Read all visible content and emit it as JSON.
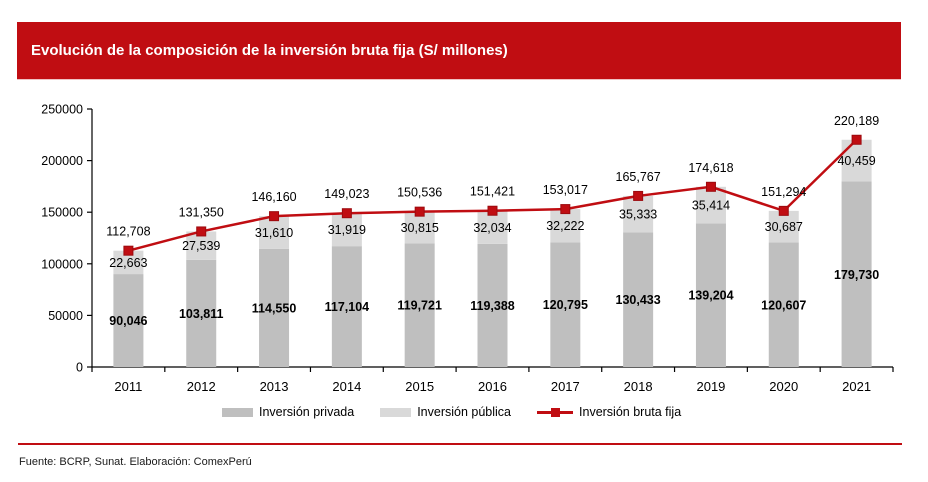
{
  "header": {
    "title": "Evolución de la composición de la inversión bruta fija (S/ millones)"
  },
  "colors": {
    "brand_red": "#C00D12",
    "marker_border_red": "#9C0A0E",
    "bar_private_gray": "#BFBFBF",
    "bar_public_gray": "#D9D9D9",
    "axis_black": "#000000"
  },
  "chart_data": {
    "type": "bar",
    "subtype": "stacked-bar-with-line",
    "categories": [
      "2011",
      "2012",
      "2013",
      "2014",
      "2015",
      "2016",
      "2017",
      "2018",
      "2019",
      "2020",
      "2021"
    ],
    "series": [
      {
        "name": "Inversión privada",
        "type": "bar",
        "stack": "total",
        "color": "#BFBFBF",
        "labels_bold": true,
        "values": [
          90046,
          103811,
          114550,
          117104,
          119721,
          119388,
          120795,
          130433,
          139204,
          120607,
          179730
        ]
      },
      {
        "name": "Inversión pública",
        "type": "bar",
        "stack": "total",
        "color": "#D9D9D9",
        "labels_bold": false,
        "values": [
          22663,
          27539,
          31610,
          31919,
          30815,
          32034,
          32222,
          35333,
          35414,
          30687,
          40459
        ]
      },
      {
        "name": "Inversión bruta fija",
        "type": "line",
        "color": "#C00D12",
        "marker": "square",
        "values": [
          112708,
          131350,
          146160,
          149023,
          150536,
          151421,
          153017,
          165767,
          174618,
          151294,
          220189
        ]
      }
    ],
    "title": "Evolución de la composición de la inversión bruta fija (S/ millones)",
    "xlabel": "",
    "ylabel": "",
    "ylim": [
      0,
      250000
    ],
    "yticks": [
      0,
      50000,
      100000,
      150000,
      200000,
      250000
    ],
    "grid": false,
    "legend_position": "bottom",
    "data_labels": true
  },
  "footer": {
    "source": "Fuente: BCRP, Sunat. Elaboración: ComexPerú"
  }
}
